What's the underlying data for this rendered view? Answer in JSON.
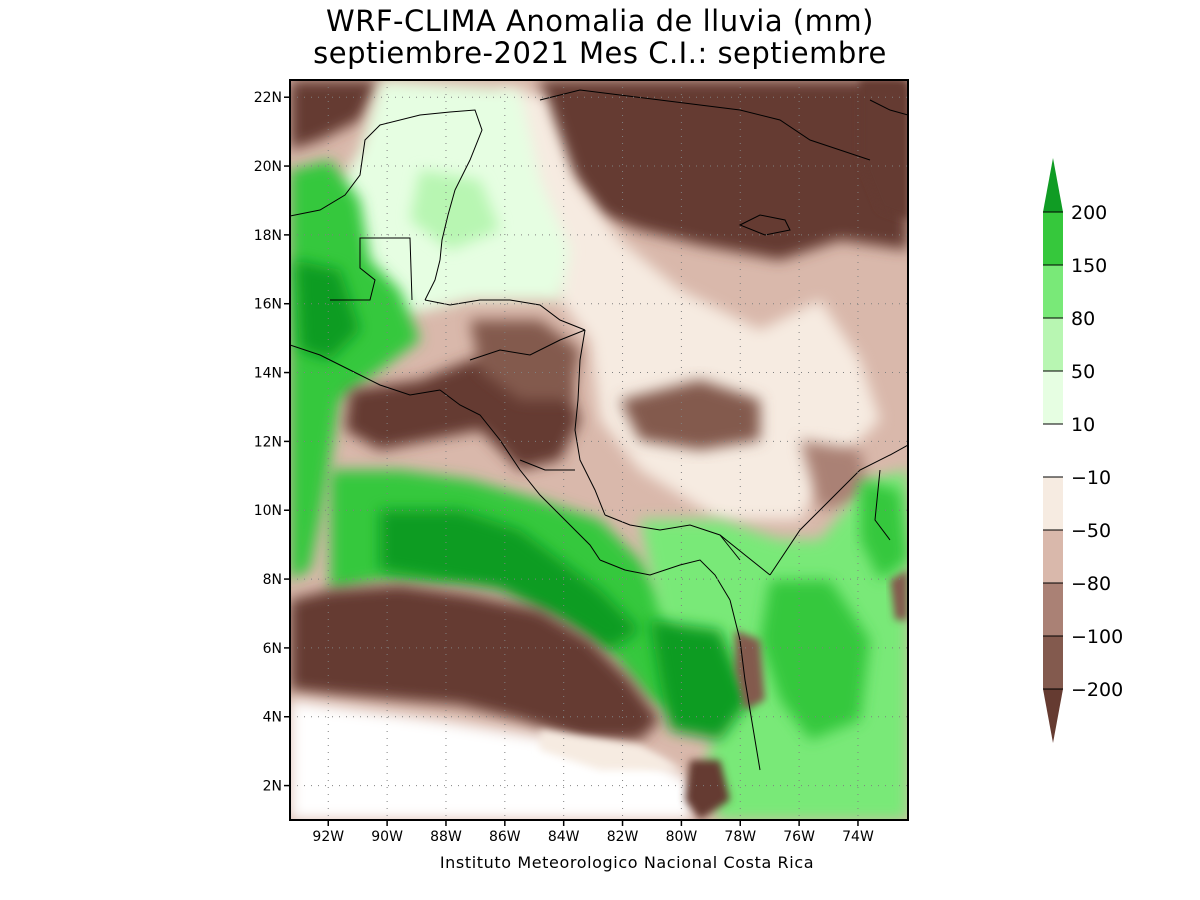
{
  "title": {
    "line1": "WRF-CLIMA Anomalia de lluvia (mm)",
    "line2": "septiembre-2021 Mes C.I.: septiembre"
  },
  "map": {
    "lat_axis": [
      "22N",
      "20N",
      "18N",
      "16N",
      "14N",
      "12N",
      "10N",
      "8N",
      "6N",
      "4N",
      "2N"
    ],
    "lon_axis": [
      "92W",
      "90W",
      "88W",
      "86W",
      "84W",
      "82W",
      "80W",
      "78W",
      "76W",
      "74W"
    ],
    "lat_range": [
      1,
      22.5
    ],
    "lon_range": [
      -93.3,
      -72.3
    ]
  },
  "colorbar": {
    "labels": [
      "200",
      "150",
      "80",
      "50",
      "10",
      "-10",
      "-50",
      "-80",
      "-100",
      "-200"
    ],
    "colors": [
      "#109c24",
      "#36c83c",
      "#79e978",
      "#b8f6b2",
      "#e6fee2",
      "#ffffff",
      "#f6ebe1",
      "#d9b8ab",
      "#aa8175",
      "#835a4e",
      "#653b31"
    ]
  },
  "footer": "Instituto Meteorologico Nacional Costa Rica"
}
